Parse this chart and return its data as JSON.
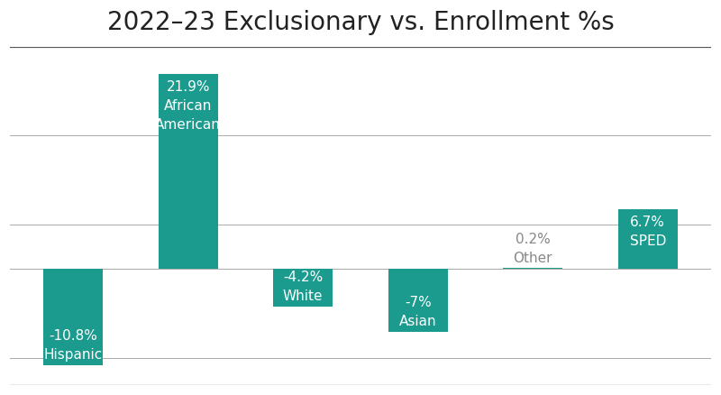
{
  "title": "2022–23 Exclusionary vs. Enrollment %s",
  "categories": [
    "Hispanic",
    "African American",
    "White",
    "Asian",
    "Other",
    "SPED"
  ],
  "values": [
    -10.8,
    21.9,
    -4.2,
    -7.0,
    0.2,
    6.7
  ],
  "bar_color": "#1a9b8e",
  "background_color": "#ffffff",
  "title_fontsize": 20,
  "label_fontsize": 11,
  "ylim": [
    -13,
    25
  ],
  "bar_width": 0.52,
  "label_colors_inside": "#ffffff",
  "label_color_other": "#888888",
  "grid_color": "#aaaaaa",
  "border_color": "#555555"
}
